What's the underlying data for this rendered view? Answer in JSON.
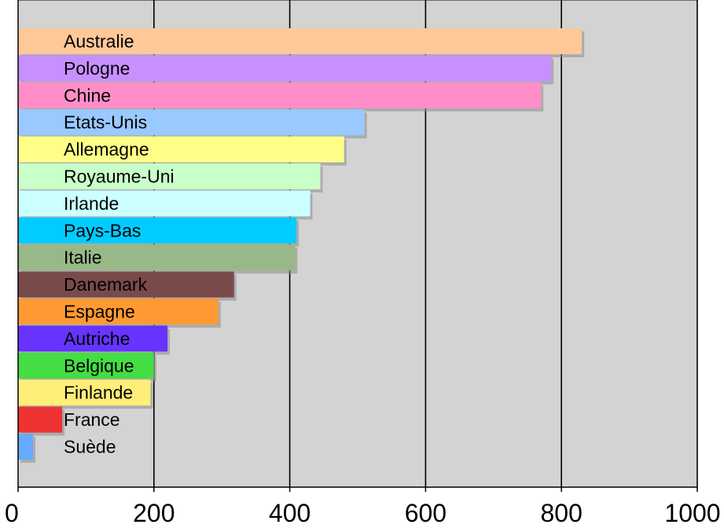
{
  "chart_data": {
    "type": "bar",
    "orientation": "horizontal",
    "title": "",
    "xlabel": "",
    "ylabel": "",
    "xlim": [
      0,
      1000
    ],
    "xticks": [
      0,
      200,
      400,
      600,
      800,
      1000
    ],
    "grid": true,
    "legend": "none",
    "plot_background": "#d3d3d3",
    "categories": [
      "Australie",
      "Pologne",
      "Chine",
      "Etats-Unis",
      "Allemagne",
      "Royaume-Uni",
      "Irlande",
      "Pays-Bas",
      "Italie",
      "Danemark",
      "Espagne",
      "Autriche",
      "Belgique",
      "Finlande",
      "France",
      "Suède"
    ],
    "values": [
      830,
      785,
      770,
      510,
      480,
      445,
      430,
      410,
      408,
      318,
      295,
      220,
      200,
      195,
      65,
      22
    ],
    "colors": [
      "#ffc899",
      "#c890ff",
      "#ff8ec8",
      "#99c9ff",
      "#ffff88",
      "#c9ffc9",
      "#ccffff",
      "#00ccff",
      "#99b888",
      "#7a4a4a",
      "#ff9a33",
      "#6633ff",
      "#44dd44",
      "#ffee77",
      "#ee3333",
      "#66aaff"
    ]
  }
}
